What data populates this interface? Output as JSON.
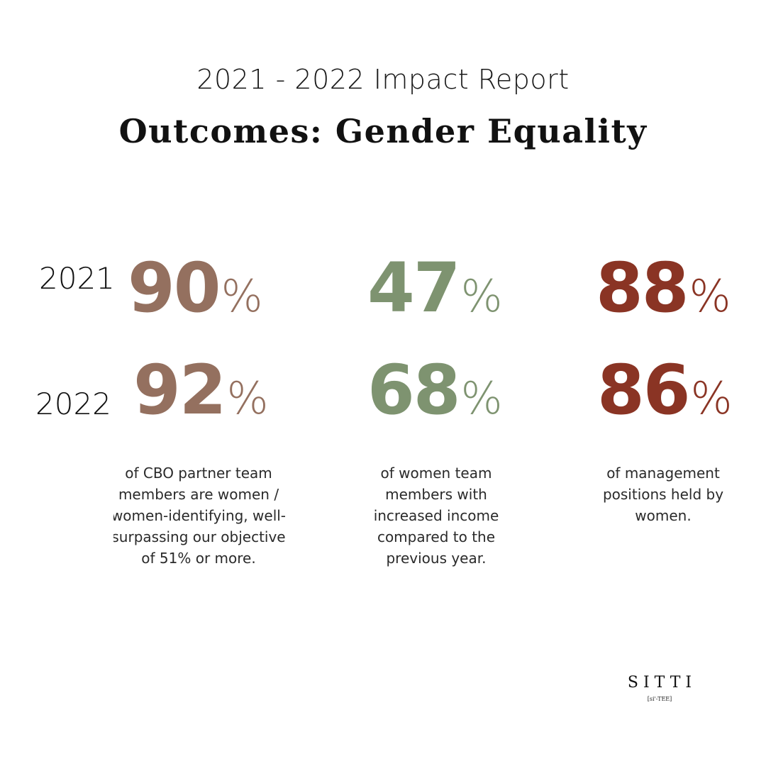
{
  "header": {
    "title": "2021 - 2022 Impact Report",
    "subtitle": "Outcomes: Gender Equality"
  },
  "years": [
    "2021",
    "2022"
  ],
  "colors": {
    "col1": "#94705F",
    "col2": "#7E9370",
    "col3": "#8A3424"
  },
  "stats": [
    {
      "v2021": "90",
      "v2022": "92",
      "unit": "%",
      "description": [
        "of CBO partner team",
        "members are women /",
        "women-identifying, well-",
        "surpassing our objective",
        "of 51% or more."
      ]
    },
    {
      "v2021": "47",
      "v2022": "68",
      "unit": "%",
      "description": [
        "of women team",
        "members with",
        "increased income",
        "compared to the",
        "previous year."
      ]
    },
    {
      "v2021": "88",
      "v2022": "86",
      "unit": "%",
      "description": [
        "of management",
        "positions held by",
        "women."
      ]
    }
  ],
  "logo": {
    "word": "SITTI",
    "phonetic": "[si'-TEE]"
  }
}
